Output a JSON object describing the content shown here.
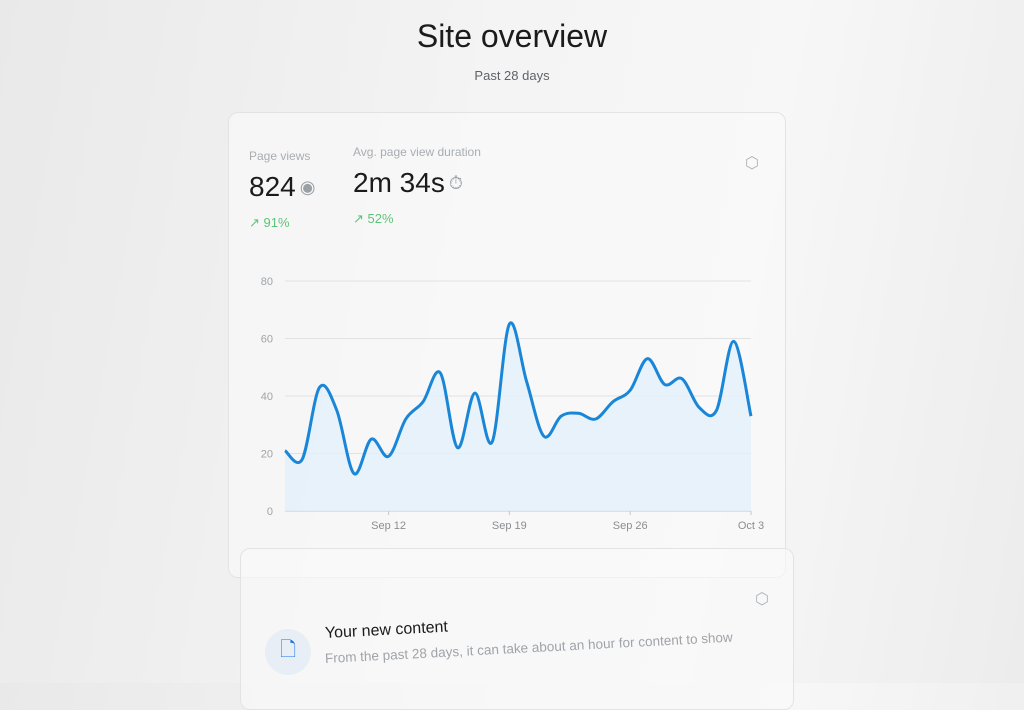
{
  "header": {
    "title": "Site overview",
    "subtitle": "Past 28 days"
  },
  "metrics": [
    {
      "label": "Page views",
      "value": "824",
      "icon": "eye-icon",
      "change": "91%",
      "trend": "up"
    },
    {
      "label": "Avg. page view duration",
      "value": "2m 34s",
      "icon": "stopwatch-icon",
      "change": "52%",
      "trend": "up"
    }
  ],
  "colors": {
    "line": "#1a86d8",
    "area": "#e3f0fa",
    "positive": "#5cc47a"
  },
  "chart_data": {
    "type": "area",
    "title": "",
    "xlabel": "",
    "ylabel": "",
    "ylim": [
      0,
      80
    ],
    "yticks": [
      "0",
      "20",
      "40",
      "60",
      "80"
    ],
    "xtick_labels": [
      "Sep 12",
      "Sep 19",
      "Sep 26",
      "Oct 3"
    ],
    "x": [
      "Sep 6",
      "Sep 7",
      "Sep 8",
      "Sep 9",
      "Sep 10",
      "Sep 11",
      "Sep 12",
      "Sep 13",
      "Sep 14",
      "Sep 15",
      "Sep 16",
      "Sep 17",
      "Sep 18",
      "Sep 19",
      "Sep 20",
      "Sep 21",
      "Sep 22",
      "Sep 23",
      "Sep 24",
      "Sep 25",
      "Sep 26",
      "Sep 27",
      "Sep 28",
      "Sep 29",
      "Sep 30",
      "Oct 1",
      "Oct 2",
      "Oct 3"
    ],
    "series": [
      {
        "values": [
          21,
          18,
          43,
          35,
          13,
          25,
          19,
          32,
          38,
          48,
          22,
          41,
          24,
          65,
          45,
          26,
          33,
          34,
          32,
          38,
          42,
          53,
          44,
          46,
          36,
          35,
          59,
          33
        ]
      }
    ],
    "grid": true
  },
  "new_content": {
    "title": "Your new content",
    "description": "From the past 28 days, it can take about an hour for content to show"
  }
}
